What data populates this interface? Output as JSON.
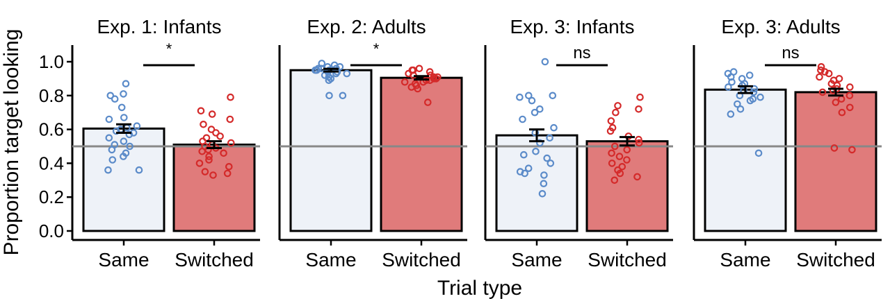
{
  "chart_data": {
    "type": "bar",
    "ylabel": "Proportion target looking",
    "xlabel": "Trial type",
    "ylim": [
      0,
      1.1
    ],
    "yticks": [
      0.0,
      0.2,
      0.4,
      0.6,
      0.8,
      1.0
    ],
    "ytick_labels": [
      "0.0",
      "0.2",
      "0.4",
      "0.6",
      "0.8",
      "1.0"
    ],
    "reference_line": 0.5,
    "categories": [
      "Same",
      "Switched"
    ],
    "colors": {
      "Same": "#eef2f8",
      "Switched": "#e07b7b",
      "same_points": "#5b8bc9",
      "switched_points": "#d42a2a",
      "reference": "#888888"
    },
    "panels": [
      {
        "title": "Exp. 1: Infants",
        "significance": "*",
        "values": [
          0.605,
          0.51
        ],
        "errors": [
          0.025,
          0.02
        ],
        "points": [
          [
            0.81,
            0.87,
            0.8,
            0.78,
            0.73,
            0.67,
            0.66,
            0.62,
            0.61,
            0.6,
            0.59,
            0.58,
            0.57,
            0.55,
            0.53,
            0.51,
            0.5,
            0.48,
            0.46,
            0.44,
            0.42,
            0.36,
            0.36
          ],
          [
            0.79,
            0.71,
            0.69,
            0.66,
            0.63,
            0.6,
            0.58,
            0.56,
            0.55,
            0.53,
            0.52,
            0.51,
            0.5,
            0.49,
            0.48,
            0.47,
            0.46,
            0.44,
            0.42,
            0.4,
            0.38,
            0.35,
            0.34,
            0.33
          ]
        ]
      },
      {
        "title": "Exp. 2: Adults",
        "significance": "*",
        "values": [
          0.95,
          0.905
        ],
        "errors": [
          0.008,
          0.01
        ],
        "points": [
          [
            0.99,
            0.98,
            0.97,
            0.97,
            0.96,
            0.96,
            0.96,
            0.95,
            0.95,
            0.95,
            0.94,
            0.94,
            0.93,
            0.93,
            0.92,
            0.91,
            0.9,
            0.89,
            0.8,
            0.8
          ],
          [
            0.96,
            0.95,
            0.95,
            0.94,
            0.93,
            0.92,
            0.92,
            0.91,
            0.91,
            0.9,
            0.9,
            0.89,
            0.89,
            0.88,
            0.88,
            0.87,
            0.86,
            0.85,
            0.84,
            0.76
          ]
        ]
      },
      {
        "title": "Exp. 3: Infants",
        "significance": "ns",
        "values": [
          0.565,
          0.53
        ],
        "errors": [
          0.035,
          0.025
        ],
        "points": [
          [
            1.0,
            0.8,
            0.8,
            0.79,
            0.77,
            0.72,
            0.7,
            0.66,
            0.61,
            0.58,
            0.55,
            0.52,
            0.47,
            0.45,
            0.43,
            0.4,
            0.37,
            0.35,
            0.34,
            0.33,
            0.28,
            0.22
          ],
          [
            0.79,
            0.74,
            0.72,
            0.7,
            0.65,
            0.61,
            0.59,
            0.56,
            0.54,
            0.52,
            0.5,
            0.48,
            0.46,
            0.44,
            0.42,
            0.4,
            0.38,
            0.36,
            0.34,
            0.32,
            0.3
          ]
        ]
      },
      {
        "title": "Exp. 3: Adults",
        "significance": "ns",
        "values": [
          0.835,
          0.82
        ],
        "errors": [
          0.02,
          0.02
        ],
        "points": [
          [
            0.94,
            0.93,
            0.92,
            0.91,
            0.9,
            0.88,
            0.87,
            0.86,
            0.85,
            0.84,
            0.83,
            0.82,
            0.8,
            0.79,
            0.78,
            0.77,
            0.75,
            0.72,
            0.69,
            0.46
          ],
          [
            0.97,
            0.95,
            0.94,
            0.93,
            0.91,
            0.9,
            0.89,
            0.87,
            0.86,
            0.85,
            0.84,
            0.83,
            0.82,
            0.8,
            0.78,
            0.76,
            0.73,
            0.7,
            0.49,
            0.48
          ]
        ]
      }
    ]
  }
}
